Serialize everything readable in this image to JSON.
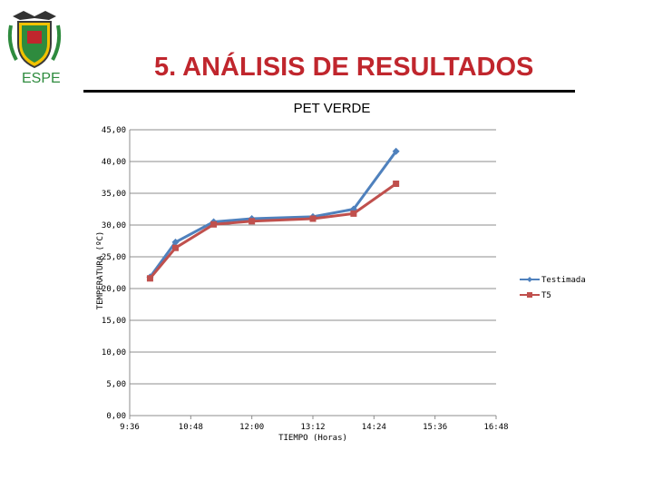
{
  "header": {
    "title": "5. ANÁLISIS DE RESULTADOS",
    "logo_text": "ESPE"
  },
  "colors": {
    "title": "#c0262d",
    "logo_text": "#2e8b3e",
    "series_testimada": "#4f81bd",
    "series_t5": "#c0504d"
  },
  "chart_data": {
    "type": "line",
    "title": "PET VERDE",
    "xlabel": "TIEMPO (Horas)",
    "ylabel": "TEMPERATURA (ºC)",
    "ylim": [
      0,
      45
    ],
    "xlim": [
      "9:36",
      "16:48"
    ],
    "x_ticks": [
      "9:36",
      "10:48",
      "12:00",
      "13:12",
      "14:24",
      "15:36",
      "16:48"
    ],
    "y_ticks": [
      "0,00",
      "5,00",
      "10,00",
      "15,00",
      "20,00",
      "25,00",
      "30,00",
      "35,00",
      "40,00",
      "45,00"
    ],
    "grid": true,
    "legend_position": "right",
    "series": [
      {
        "name": "Testimada",
        "marker": "diamond",
        "x": [
          "10:00",
          "10:30",
          "11:15",
          "12:00",
          "13:12",
          "14:00",
          "14:50"
        ],
        "y": [
          21.8,
          27.3,
          30.5,
          31.0,
          31.3,
          32.5,
          41.6
        ]
      },
      {
        "name": "T5",
        "marker": "square",
        "x": [
          "10:00",
          "10:30",
          "11:15",
          "12:00",
          "13:12",
          "14:00",
          "14:50"
        ],
        "y": [
          21.6,
          26.4,
          30.1,
          30.6,
          31.0,
          31.8,
          36.5
        ]
      }
    ]
  }
}
